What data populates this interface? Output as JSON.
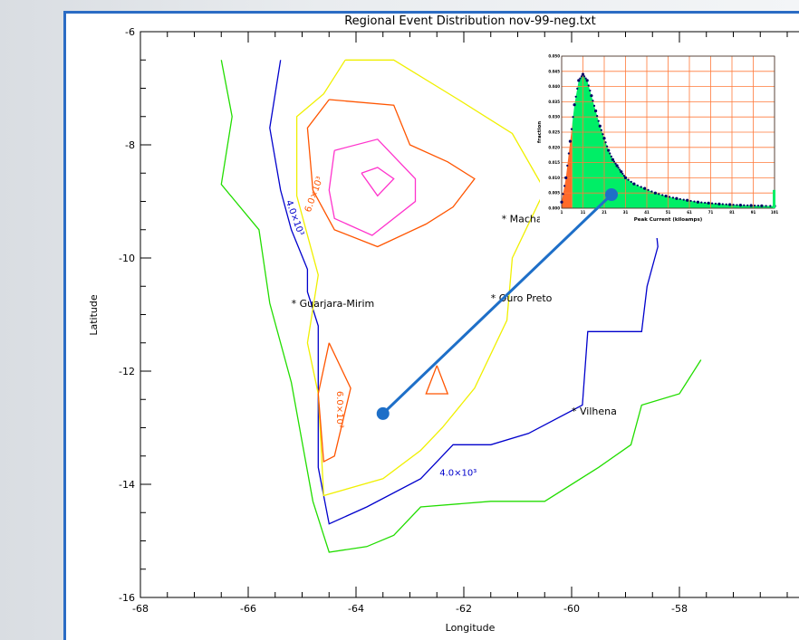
{
  "chart_data": [
    {
      "type": "contour",
      "title": "Regional Event Distribution nov-99-neg.txt",
      "xlabel": "Longitude",
      "ylabel": "Latitude",
      "xlim": [
        -68,
        -56
      ],
      "ylim": [
        -16,
        -6
      ],
      "x_ticks": [
        "-68",
        "-66",
        "-64",
        "-62",
        "-60",
        "-58"
      ],
      "y_ticks": [
        "-6",
        "-8",
        "-10",
        "-12",
        "-14",
        "-16"
      ],
      "contour_levels": [
        {
          "label": "4.0×10³",
          "color": "#0000cc"
        },
        {
          "label": "6.0×10³",
          "color": "#ff5500"
        }
      ],
      "contours": [
        {
          "name": "green",
          "color": "#22dd00",
          "points": [
            [
              -66.5,
              -6.5
            ],
            [
              -66.3,
              -7.5
            ],
            [
              -66.5,
              -8.7
            ],
            [
              -65.8,
              -9.5
            ],
            [
              -65.6,
              -10.8
            ],
            [
              -65.2,
              -12.2
            ],
            [
              -64.8,
              -14.3
            ],
            [
              -64.6,
              -14.9
            ],
            [
              -64.5,
              -15.2
            ],
            [
              -63.8,
              -15.1
            ],
            [
              -63.3,
              -14.9
            ],
            [
              -62.8,
              -14.4
            ],
            [
              -61.5,
              -14.3
            ],
            [
              -60.5,
              -14.3
            ],
            [
              -59.5,
              -13.7
            ],
            [
              -58.9,
              -13.3
            ],
            [
              -58.7,
              -12.6
            ],
            [
              -58,
              -12.4
            ],
            [
              -57.6,
              -11.8
            ]
          ]
        },
        {
          "name": "blue",
          "color": "#0000cc",
          "points": [
            [
              -65.4,
              -6.5
            ],
            [
              -65.6,
              -7.7
            ],
            [
              -65.4,
              -8.8
            ],
            [
              -65.2,
              -9.5
            ],
            [
              -64.9,
              -10.2
            ],
            [
              -64.9,
              -10.6
            ],
            [
              -64.7,
              -11.2
            ],
            [
              -64.7,
              -13.7
            ],
            [
              -64.5,
              -14.7
            ],
            [
              -63.8,
              -14.4
            ],
            [
              -62.8,
              -13.9
            ],
            [
              -62.2,
              -13.3
            ],
            [
              -61.5,
              -13.3
            ],
            [
              -60.8,
              -13.1
            ],
            [
              -59.8,
              -12.6
            ],
            [
              -59.7,
              -11.3
            ],
            [
              -58.7,
              -11.3
            ],
            [
              -58.6,
              -10.5
            ],
            [
              -58.4,
              -9.8
            ],
            [
              -58.5,
              -8.9
            ],
            [
              -58.8,
              -8.0
            ]
          ]
        },
        {
          "name": "yellow",
          "color": "#f0f000",
          "points": [
            [
              -64.2,
              -6.5
            ],
            [
              -64.6,
              -7.1
            ],
            [
              -65.1,
              -7.5
            ],
            [
              -65.1,
              -8.9
            ],
            [
              -64.7,
              -10.3
            ],
            [
              -64.9,
              -11.5
            ],
            [
              -64.7,
              -12.4
            ],
            [
              -64.6,
              -14.2
            ],
            [
              -63.5,
              -13.9
            ],
            [
              -62.8,
              -13.4
            ],
            [
              -62.4,
              -13.0
            ],
            [
              -61.8,
              -12.3
            ],
            [
              -61.2,
              -11.1
            ],
            [
              -61.1,
              -10.0
            ],
            [
              -60.5,
              -8.8
            ],
            [
              -61.1,
              -7.8
            ],
            [
              -62.1,
              -7.2
            ],
            [
              -63.3,
              -6.5
            ],
            [
              -64.2,
              -6.5
            ]
          ]
        },
        {
          "name": "orange",
          "color": "#ff5500",
          "points": [
            [
              -64.5,
              -7.2
            ],
            [
              -64.9,
              -7.7
            ],
            [
              -64.8,
              -8.8
            ],
            [
              -64.4,
              -9.5
            ],
            [
              -63.6,
              -9.8
            ],
            [
              -62.7,
              -9.4
            ],
            [
              -62.2,
              -9.1
            ],
            [
              -61.8,
              -8.6
            ],
            [
              -62.3,
              -8.3
            ],
            [
              -63.0,
              -8.0
            ],
            [
              -63.3,
              -7.3
            ],
            [
              -64.5,
              -7.2
            ]
          ]
        },
        {
          "name": "magenta",
          "color": "#ff33cc",
          "points": [
            [
              -64.4,
              -8.1
            ],
            [
              -64.5,
              -8.8
            ],
            [
              -64.4,
              -9.3
            ],
            [
              -63.7,
              -9.6
            ],
            [
              -62.9,
              -9.0
            ],
            [
              -62.9,
              -8.6
            ],
            [
              -63.6,
              -7.9
            ],
            [
              -64.4,
              -8.1
            ]
          ]
        },
        {
          "name": "magenta-inner",
          "color": "#ff33cc",
          "points": [
            [
              -63.9,
              -8.5
            ],
            [
              -63.6,
              -8.4
            ],
            [
              -63.3,
              -8.6
            ],
            [
              -63.6,
              -8.9
            ],
            [
              -63.9,
              -8.5
            ]
          ]
        },
        {
          "name": "orange-south",
          "color": "#ff5500",
          "points": [
            [
              -64.5,
              -11.5
            ],
            [
              -64.7,
              -12.4
            ],
            [
              -64.6,
              -13.6
            ],
            [
              -64.4,
              -13.5
            ],
            [
              -64.1,
              -12.3
            ],
            [
              -64.5,
              -11.5
            ]
          ]
        },
        {
          "name": "orange-tri",
          "color": "#ff5500",
          "points": [
            [
              -62.5,
              -11.9
            ],
            [
              -62.7,
              -12.4
            ],
            [
              -62.3,
              -12.4
            ],
            [
              -62.5,
              -11.9
            ]
          ]
        }
      ],
      "cities": [
        {
          "name": "Machadinho",
          "label": "* Machac",
          "lon": -61.3,
          "lat": -9.3
        },
        {
          "name": "Guarjara-Mirim",
          "label": "* Guarjara-Mirim",
          "lon": -65.2,
          "lat": -10.8
        },
        {
          "name": "Ouro Preto",
          "label": "* Ouro Preto",
          "lon": -61.5,
          "lat": -10.7
        },
        {
          "name": "Vilhena",
          "label": "* Vilhena",
          "lon": -60.0,
          "lat": -12.7
        }
      ],
      "callout": {
        "from": [
          -63.5,
          -12.75
        ],
        "color": "#1e6fc8"
      }
    },
    {
      "type": "area",
      "inset": true,
      "xlabel": "Peak Current (kiloamps)",
      "ylabel": "fraction",
      "xlim": [
        1,
        101
      ],
      "ylim": [
        0,
        0.05
      ],
      "x_ticks": [
        "1",
        "11",
        "21",
        "31",
        "41",
        "51",
        "61",
        "71",
        "81",
        "91",
        "101"
      ],
      "y_ticks": [
        "0.050",
        "0.045",
        "0.040",
        "0.035",
        "0.030",
        "0.025",
        "0.020",
        "0.015",
        "0.010",
        "0.005",
        "0.000"
      ],
      "x": [
        1,
        3,
        5,
        7,
        9,
        11,
        13,
        15,
        17,
        19,
        21,
        23,
        25,
        27,
        29,
        31,
        35,
        40,
        45,
        50,
        55,
        60,
        65,
        70,
        75,
        80,
        85,
        90,
        95,
        101
      ],
      "values": [
        0.002,
        0.01,
        0.022,
        0.034,
        0.042,
        0.044,
        0.042,
        0.037,
        0.032,
        0.027,
        0.023,
        0.019,
        0.016,
        0.014,
        0.012,
        0.01,
        0.008,
        0.0065,
        0.005,
        0.004,
        0.0032,
        0.0026,
        0.002,
        0.0017,
        0.0014,
        0.0012,
        0.001,
        0.0009,
        0.0008,
        0.0007
      ],
      "split_x": 6,
      "colors": {
        "low": "#ff6a2a",
        "high": "#00ee66",
        "grid": "#ff7a3a",
        "points": "#000066"
      }
    }
  ]
}
